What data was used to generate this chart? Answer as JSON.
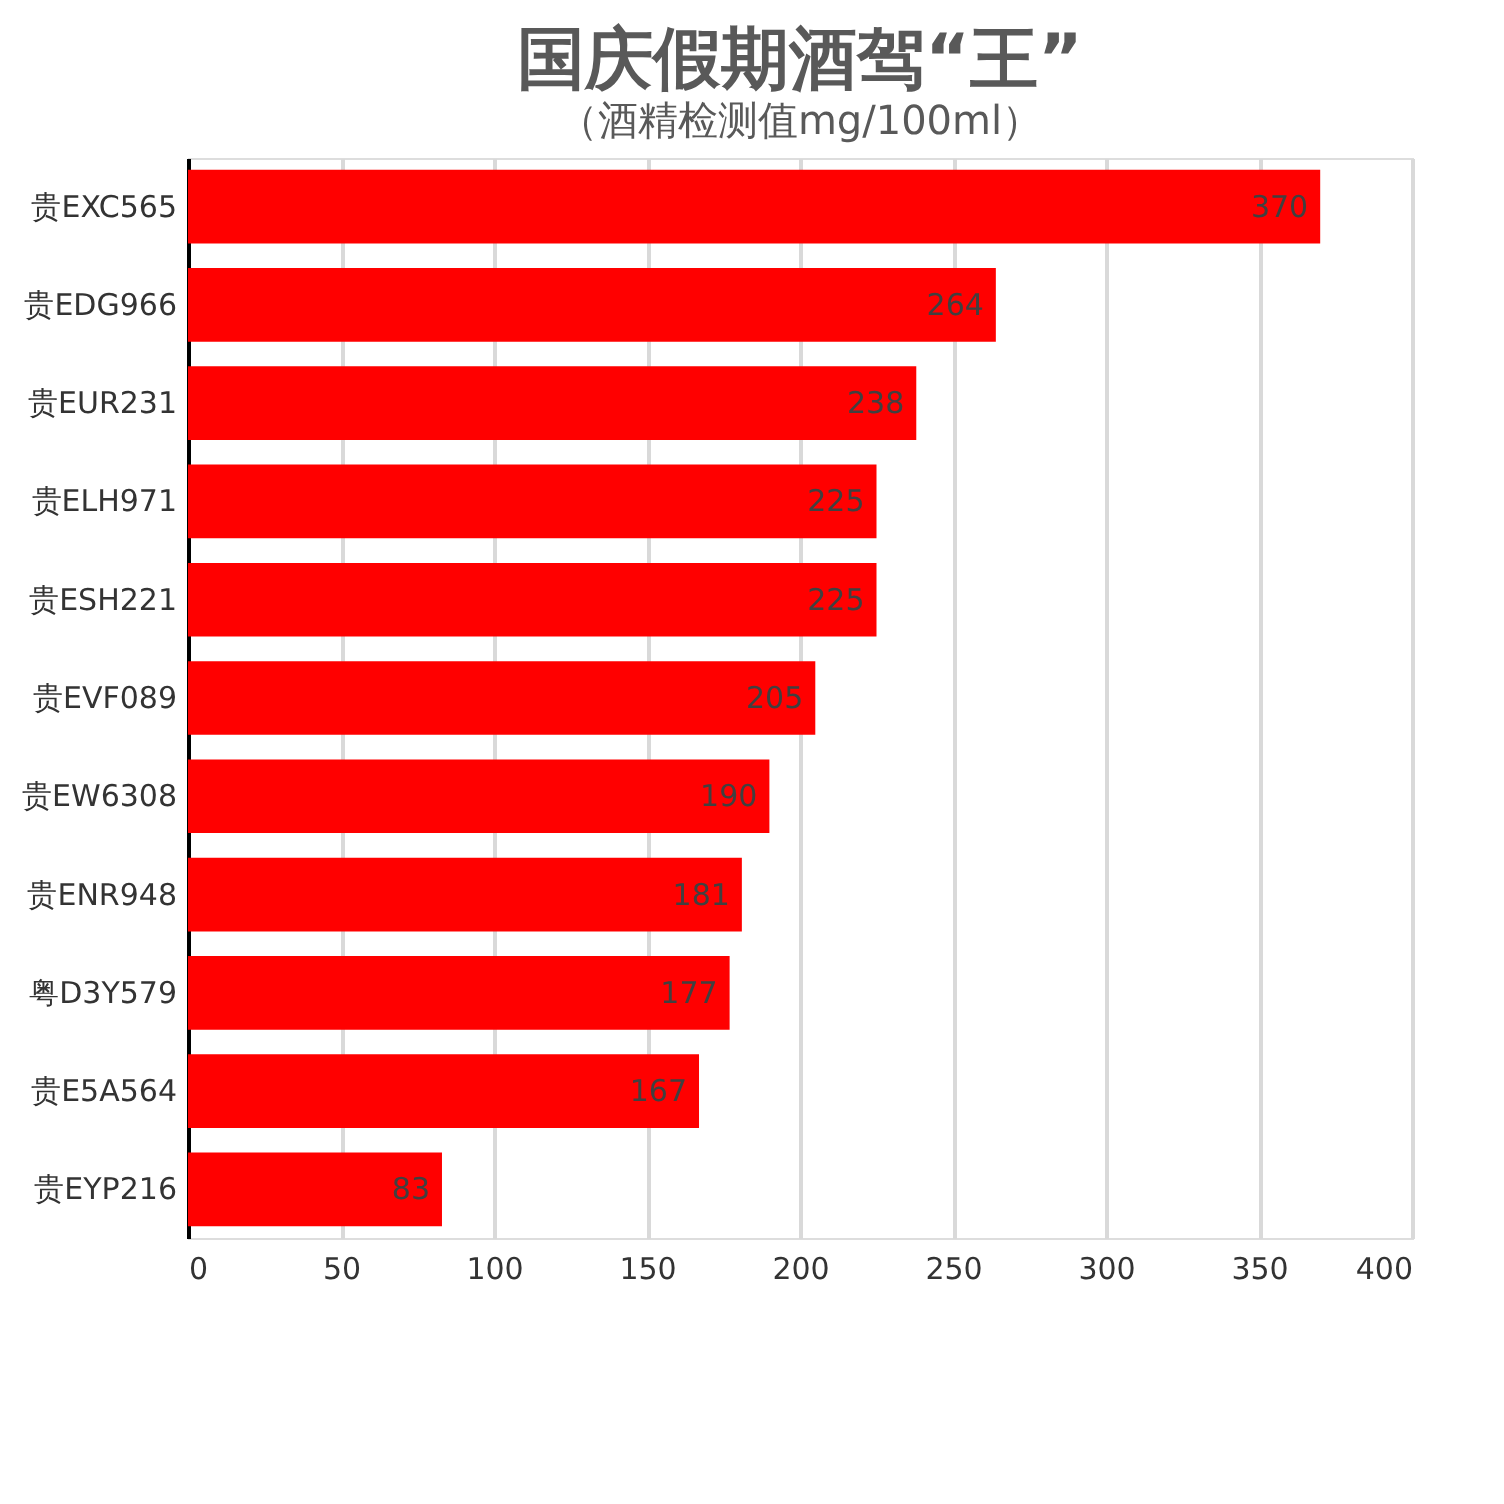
{
  "chart_data": {
    "type": "bar",
    "orientation": "horizontal",
    "title": "国庆假期酒驾“王”",
    "subtitle": "（酒精检测值mg/100ml）",
    "categories": [
      "贵EXC565",
      "贵EDG966",
      "贵EUR231",
      "贵ELH971",
      "贵ESH221",
      "贵EVF089",
      "贵EW6308",
      "贵ENR948",
      "粤D3Y579",
      "贵E5A564",
      "贵EYP216"
    ],
    "values": [
      370,
      264,
      238,
      225,
      225,
      205,
      190,
      181,
      177,
      167,
      83
    ],
    "color": "#ff0000",
    "data_labels": true,
    "xlim": [
      0,
      400
    ],
    "xticks": [
      0,
      50,
      100,
      150,
      200,
      250,
      300,
      350,
      400
    ],
    "grid": "x"
  }
}
